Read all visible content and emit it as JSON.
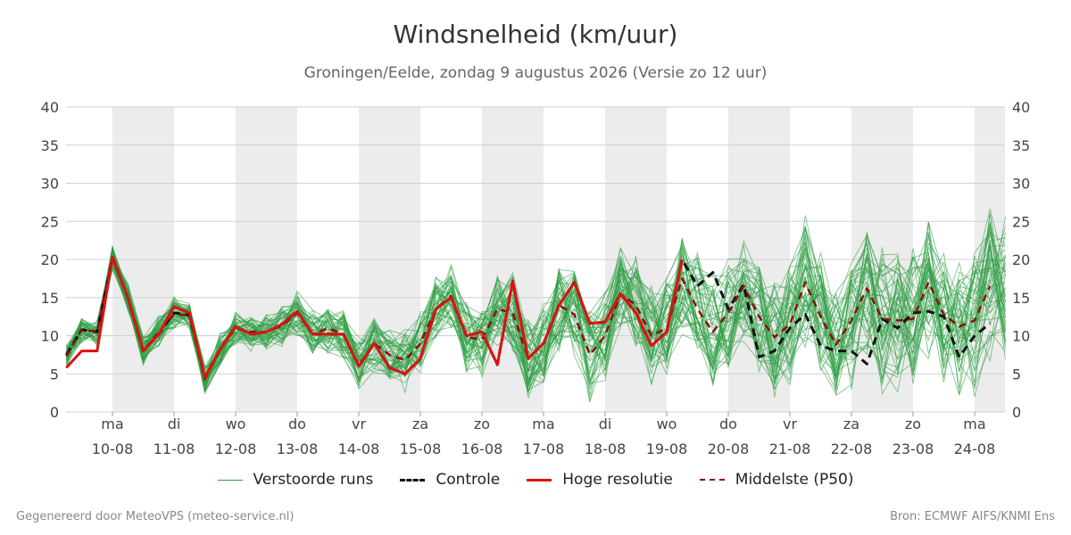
{
  "chart_data": {
    "type": "line",
    "title": "Windsnelheid (km/uur)",
    "subtitle": "Groningen/Eelde, zondag  9 augustus 2026 (Versie zo 12 uur)",
    "ylim": [
      0,
      40
    ],
    "y_ticks": [
      "0",
      "5",
      "10",
      "15",
      "20",
      "25",
      "30",
      "35",
      "40"
    ],
    "grid": true,
    "weekend_shading": true,
    "x_ticks": [
      {
        "day": "ma",
        "date": "10-08"
      },
      {
        "day": "di",
        "date": "11-08"
      },
      {
        "day": "wo",
        "date": "12-08"
      },
      {
        "day": "do",
        "date": "13-08"
      },
      {
        "day": "vr",
        "date": "14-08"
      },
      {
        "day": "za",
        "date": "15-08"
      },
      {
        "day": "zo",
        "date": "16-08"
      },
      {
        "day": "ma",
        "date": "17-08"
      },
      {
        "day": "di",
        "date": "18-08"
      },
      {
        "day": "wo",
        "date": "19-08"
      },
      {
        "day": "do",
        "date": "20-08"
      },
      {
        "day": "vr",
        "date": "21-08"
      },
      {
        "day": "za",
        "date": "22-08"
      },
      {
        "day": "zo",
        "date": "23-08"
      },
      {
        "day": "ma",
        "date": "24-08"
      }
    ],
    "x_days": [
      -0.75,
      -0.5,
      -0.25,
      0,
      0.25,
      0.5,
      0.75,
      1,
      1.25,
      1.5,
      1.75,
      2,
      2.25,
      2.5,
      2.75,
      3,
      3.25,
      3.5,
      3.75,
      4,
      4.25,
      4.5,
      4.75,
      5,
      5.25,
      5.5,
      5.75,
      6,
      6.25,
      6.5,
      6.75,
      7,
      7.25,
      7.5,
      7.75,
      8,
      8.25,
      8.5,
      8.75,
      9,
      9.25,
      9.5,
      9.75,
      10,
      10.25,
      10.5,
      10.75,
      11,
      11.25,
      11.5,
      11.75,
      12,
      12.25,
      12.5,
      12.75,
      13,
      13.25,
      13.5,
      13.75,
      14,
      14.25,
      14.5
    ],
    "series": [
      {
        "name": "Controle",
        "color": "#111111",
        "style": "dashed",
        "values": [
          7.5,
          10.8,
          10.5,
          20.3,
          15,
          8,
          10.2,
          13,
          12.7,
          4.5,
          8.2,
          11.2,
          10.2,
          10.5,
          11.5,
          13.2,
          10.2,
          10.2,
          10.2,
          6,
          9,
          5.8,
          5,
          7,
          13.5,
          15,
          10,
          10.5,
          6.2,
          17.2,
          7,
          9,
          14,
          17,
          11.6,
          11.8,
          15.5,
          13,
          8.7,
          10.5,
          20,
          16.5,
          18.3,
          13.5,
          16.7,
          7.2,
          8,
          11,
          12.8,
          8.7,
          8,
          8,
          6.3,
          12.2,
          11,
          13,
          13.2,
          12.5,
          7.2,
          10,
          11.6
        ]
      },
      {
        "name": "Hoge resolutie",
        "color": "#dd1111",
        "style": "solid",
        "values": [
          5.8,
          8,
          8,
          20.3,
          15,
          8,
          10.2,
          13.8,
          13,
          4.5,
          8.2,
          11.2,
          10.2,
          10.5,
          11.5,
          13.2,
          10.2,
          10.2,
          10.2,
          6,
          9,
          5.8,
          5,
          7,
          13.5,
          15,
          10,
          10.5,
          6.2,
          17.2,
          7,
          9,
          14,
          17,
          11.6,
          11.8,
          15.5,
          13,
          8.7,
          10.5,
          20
        ]
      },
      {
        "name": "Middelste (P50)",
        "color": "#8b1010",
        "style": "dashed",
        "values": [
          7.3,
          10.8,
          10.5,
          20.3,
          15,
          8,
          10.5,
          12.8,
          12.7,
          4.3,
          8.2,
          11,
          10.5,
          10.5,
          11.3,
          13,
          10.2,
          11,
          10.2,
          6.2,
          9,
          7.5,
          6.8,
          9,
          13.5,
          15.2,
          9.8,
          9.5,
          13.5,
          13,
          7,
          9,
          14,
          12.8,
          7.5,
          10,
          15.5,
          14,
          10,
          11,
          17.5,
          13.5,
          10.5,
          13,
          16.5,
          12.5,
          9.8,
          11.5,
          17,
          12.5,
          8.8,
          12,
          16.2,
          12.2,
          12,
          12.2,
          17,
          12.8,
          11.2,
          12,
          16.5
        ]
      }
    ],
    "ensemble": {
      "name": "Verstoorde runs",
      "color": "#2e9e44",
      "count": 50
    },
    "source_left": "Gegenereerd door MeteoVPS (meteo-service.nl)",
    "source_right": "Bron: ECMWF AIFS/KNMI Ens"
  }
}
